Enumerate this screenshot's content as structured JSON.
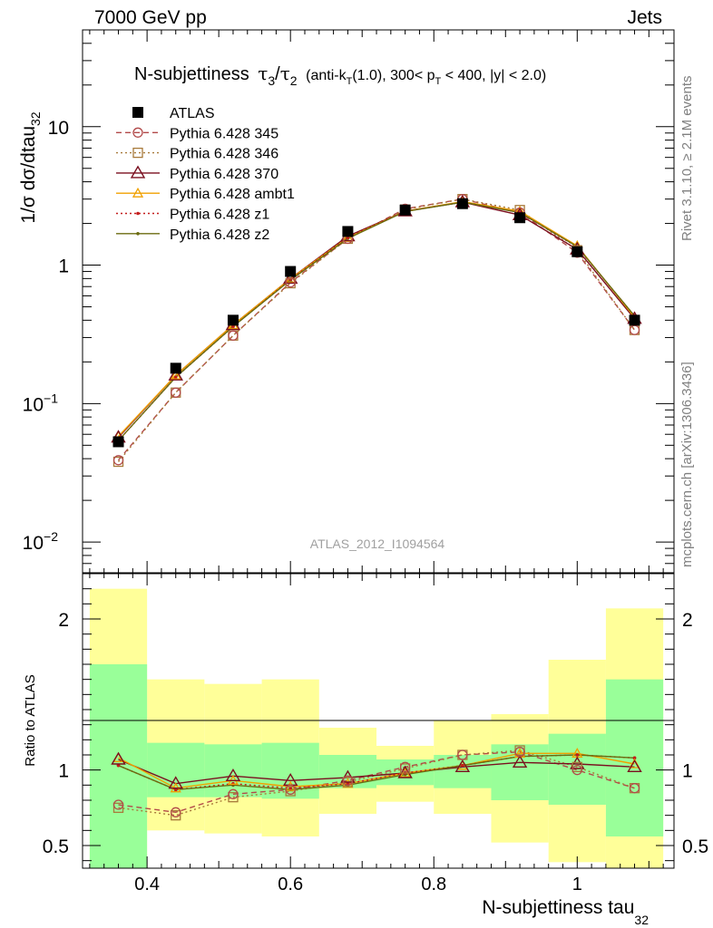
{
  "header": {
    "left": "7000 GeV pp",
    "right": "Jets"
  },
  "plot_title_main": "N-subjettiness",
  "plot_title_cut": "(anti-k",
  "plot_title_sub_T": "T",
  "plot_title_cut2": "(1.0), 300< p",
  "plot_title_cut3": " < 400, |y| < 2.0)",
  "watermark": "ATLAS_2012_I1094564",
  "side_text_top": "Rivet 3.1.10, ≥ 2.1M events",
  "side_text_bottom": "mcplots.cern.ch [arXiv:1306.3436]",
  "colors": {
    "atlas": "#000000",
    "p345": "#b24a4a",
    "p346": "#a87a3a",
    "p370": "#7a0f1f",
    "ambt1": "#f0a000",
    "z1": "#c41c1c",
    "z2": "#6b6b10",
    "band_inner": "#99ff99",
    "band_outer": "#ffff99"
  },
  "chart_data": [
    {
      "type": "line",
      "panel": "main",
      "ylabel": "1/σ dσ/dtau",
      "ylabel_sub": "32",
      "yscale": "log",
      "ylim": [
        0.006,
        50
      ],
      "xlim": [
        0.31,
        1.135
      ],
      "yticks": [
        {
          "value": 10,
          "label": "10"
        },
        {
          "value": 1,
          "label": "1"
        },
        {
          "value": 0.1,
          "label": "10",
          "sup": "−1"
        },
        {
          "value": 0.01,
          "label": "10",
          "sup": "−2"
        }
      ],
      "x": [
        0.36,
        0.44,
        0.52,
        0.6,
        0.68,
        0.76,
        0.84,
        0.92,
        1.0,
        1.08
      ],
      "series": [
        {
          "key": "atlas",
          "name": "ATLAS",
          "marker": "square",
          "line": "none",
          "values": [
            0.053,
            0.18,
            0.4,
            0.9,
            1.75,
            2.5,
            2.78,
            2.2,
            1.25,
            0.4
          ]
        },
        {
          "key": "p345",
          "name": "Pythia 6.428 345",
          "marker": "circle",
          "line": "dashed",
          "values": [
            0.039,
            0.12,
            0.31,
            0.75,
            1.55,
            2.55,
            3.0,
            2.4,
            1.23,
            0.34
          ]
        },
        {
          "key": "p346",
          "name": "Pythia 6.428 346",
          "marker": "square-open",
          "line": "dotted",
          "values": [
            0.038,
            0.12,
            0.31,
            0.74,
            1.55,
            2.52,
            3.0,
            2.5,
            1.28,
            0.34
          ]
        },
        {
          "key": "p370",
          "name": "Pythia 6.428 370",
          "marker": "triangle",
          "line": "solid",
          "values": [
            0.057,
            0.16,
            0.37,
            0.8,
            1.62,
            2.45,
            2.85,
            2.3,
            1.3,
            0.41
          ]
        },
        {
          "key": "ambt1",
          "name": "Pythia 6.428 ambt1",
          "marker": "triangle-small",
          "line": "solid",
          "values": [
            0.058,
            0.16,
            0.37,
            0.8,
            1.58,
            2.45,
            2.88,
            2.45,
            1.38,
            0.42
          ]
        },
        {
          "key": "z1",
          "name": "Pythia 6.428 z1",
          "marker": "dot",
          "line": "dotted",
          "values": [
            0.054,
            0.155,
            0.36,
            0.79,
            1.58,
            2.45,
            2.85,
            2.4,
            1.35,
            0.43
          ]
        },
        {
          "key": "z2",
          "name": "Pythia 6.428 z2",
          "marker": "dot",
          "line": "solid",
          "values": [
            0.054,
            0.155,
            0.36,
            0.78,
            1.56,
            2.44,
            2.85,
            2.4,
            1.36,
            0.43
          ]
        }
      ]
    },
    {
      "type": "line",
      "panel": "ratio",
      "ylabel": "Ratio to ATLAS",
      "xlabel": "N-subjettiness tau",
      "xlabel_sub": "32",
      "xlim": [
        0.31,
        1.135
      ],
      "ylim": [
        0.35,
        2.3
      ],
      "xticks": [
        {
          "value": 0.4,
          "label": "0.4"
        },
        {
          "value": 0.6,
          "label": "0.6"
        },
        {
          "value": 0.8,
          "label": "0.8"
        },
        {
          "value": 1.0,
          "label": "1"
        }
      ],
      "yticks": [
        {
          "value": 2,
          "label": "2"
        },
        {
          "value": 1,
          "label": "1"
        },
        {
          "value": 0.5,
          "label": "0.5"
        }
      ],
      "bin_edges": [
        0.32,
        0.4,
        0.48,
        0.56,
        0.64,
        0.72,
        0.8,
        0.88,
        0.96,
        1.04,
        1.12
      ],
      "band_inner": [
        [
          0.3,
          1.7
        ],
        [
          0.82,
          1.18
        ],
        [
          0.82,
          1.17
        ],
        [
          0.81,
          1.18
        ],
        [
          0.88,
          1.1
        ],
        [
          0.9,
          1.07
        ],
        [
          0.88,
          1.1
        ],
        [
          0.8,
          1.17
        ],
        [
          0.77,
          1.24
        ],
        [
          0.56,
          1.6
        ]
      ],
      "band_outer": [
        [
          0.3,
          2.2
        ],
        [
          0.6,
          1.6
        ],
        [
          0.58,
          1.57
        ],
        [
          0.56,
          1.6
        ],
        [
          0.71,
          1.28
        ],
        [
          0.79,
          1.16
        ],
        [
          0.71,
          1.33
        ],
        [
          0.52,
          1.37
        ],
        [
          0.39,
          1.73
        ],
        [
          0.3,
          2.07
        ]
      ],
      "x": [
        0.36,
        0.44,
        0.52,
        0.6,
        0.68,
        0.76,
        0.84,
        0.92,
        1.0,
        1.08
      ],
      "series": [
        {
          "key": "p345",
          "values": [
            0.77,
            0.72,
            0.84,
            0.87,
            0.93,
            1.02,
            1.1,
            1.12,
            1.0,
            0.88
          ]
        },
        {
          "key": "p346",
          "values": [
            0.75,
            0.7,
            0.82,
            0.86,
            0.92,
            1.01,
            1.1,
            1.13,
            1.02,
            0.88
          ]
        },
        {
          "key": "p370",
          "values": [
            1.07,
            0.91,
            0.96,
            0.93,
            0.95,
            0.98,
            1.02,
            1.05,
            1.04,
            1.02
          ]
        },
        {
          "key": "ambt1",
          "values": [
            1.08,
            0.88,
            0.93,
            0.89,
            0.91,
            0.98,
            1.03,
            1.11,
            1.11,
            1.04
          ]
        },
        {
          "key": "z1",
          "values": [
            1.03,
            0.87,
            0.91,
            0.88,
            0.91,
            0.98,
            1.03,
            1.09,
            1.1,
            1.08
          ]
        },
        {
          "key": "z2",
          "values": [
            1.03,
            0.87,
            0.9,
            0.87,
            0.9,
            0.97,
            1.03,
            1.09,
            1.1,
            1.08
          ]
        }
      ]
    }
  ]
}
